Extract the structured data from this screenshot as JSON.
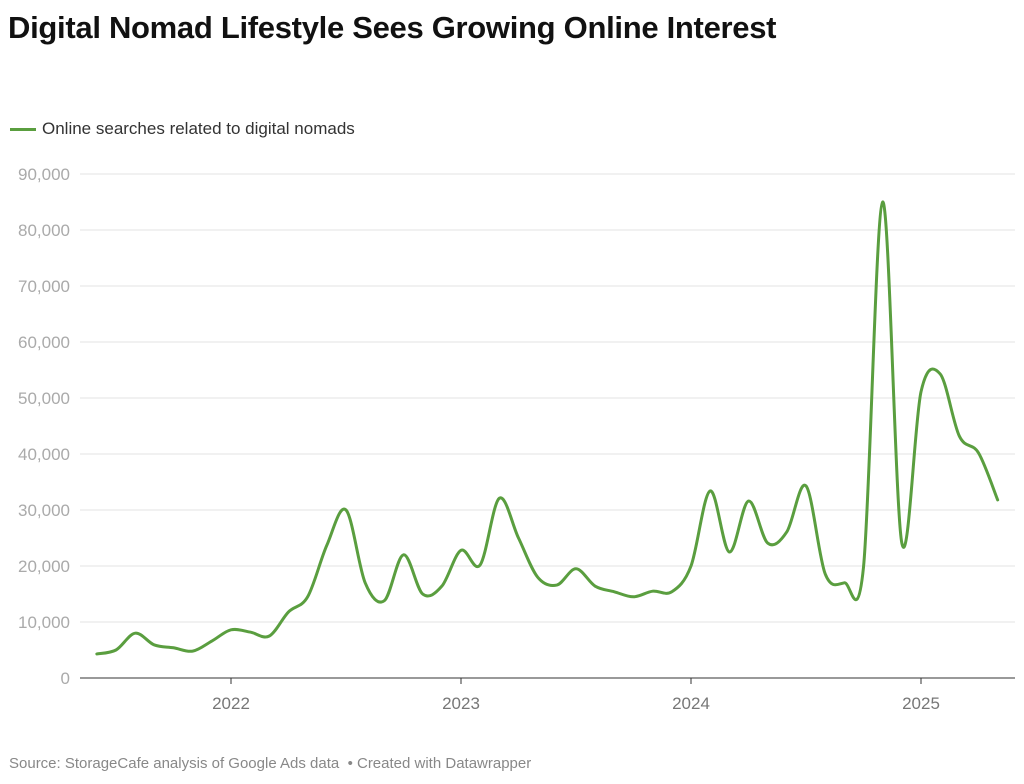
{
  "chart_data": {
    "type": "line",
    "title": "Digital Nomad Lifestyle Sees Growing Online Interest",
    "xlabel": "",
    "ylabel": "",
    "ylim": [
      0,
      90000
    ],
    "yticks": [
      "0",
      "10,000",
      "20,000",
      "30,000",
      "40,000",
      "50,000",
      "60,000",
      "70,000",
      "80,000",
      "90,000"
    ],
    "xticks": [
      "2022",
      "2023",
      "2024",
      "2025"
    ],
    "grid": true,
    "legend": "top-left",
    "x_start": "2021-06",
    "x_end": "2025-05",
    "x": [
      "2021-06",
      "2021-07",
      "2021-08",
      "2021-09",
      "2021-10",
      "2021-11",
      "2021-12",
      "2022-01",
      "2022-02",
      "2022-03",
      "2022-04",
      "2022-05",
      "2022-06",
      "2022-07",
      "2022-08",
      "2022-09",
      "2022-10",
      "2022-11",
      "2022-12",
      "2023-01",
      "2023-02",
      "2023-03",
      "2023-04",
      "2023-05",
      "2023-06",
      "2023-07",
      "2023-08",
      "2023-09",
      "2023-10",
      "2023-11",
      "2023-12",
      "2024-01",
      "2024-02",
      "2024-03",
      "2024-04",
      "2024-05",
      "2024-06",
      "2024-07",
      "2024-08",
      "2024-09",
      "2024-10",
      "2024-11",
      "2024-12",
      "2025-01",
      "2025-02",
      "2025-03",
      "2025-04",
      "2025-05"
    ],
    "series": [
      {
        "name": "Online searches related to digital nomads",
        "color": "#5a9e3f",
        "values": [
          4300,
          5000,
          8000,
          5900,
          5400,
          4800,
          6600,
          8600,
          8200,
          7500,
          11800,
          14500,
          23700,
          30000,
          17000,
          13800,
          22000,
          15000,
          16400,
          22800,
          20200,
          32100,
          25000,
          18000,
          16600,
          19500,
          16400,
          15400,
          14500,
          15500,
          15400,
          20000,
          33400,
          22500,
          31600,
          24100,
          26100,
          34300,
          18600,
          17000,
          19800,
          85000,
          24100,
          51100,
          54300,
          43200,
          40200,
          31800
        ]
      }
    ]
  },
  "footer": {
    "source": "Source: StorageCafe analysis of Google Ads data",
    "credit": "• Created with Datawrapper"
  }
}
